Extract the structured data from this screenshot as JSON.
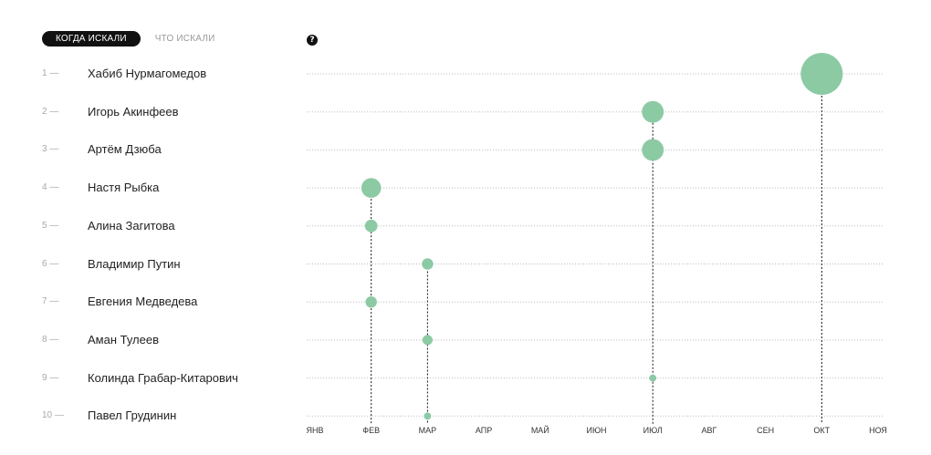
{
  "tabs": {
    "when": "Когда искали",
    "what": "Что искали"
  },
  "help": {
    "icon": "question-icon",
    "glyph": "?"
  },
  "chart_data": {
    "type": "scatter",
    "x_axis": [
      "ЯНВ",
      "ФЕВ",
      "МАР",
      "АПР",
      "МАЙ",
      "ИЮН",
      "ИЮЛ",
      "АВГ",
      "СЕН",
      "ОКТ",
      "НОЯ"
    ],
    "grid": true,
    "point_color": "#8ccaa4",
    "rows": [
      {
        "rank": "1 —",
        "name": "Хабиб Нурмагомедов",
        "month": "ОКТ",
        "size": 1.0
      },
      {
        "rank": "2 —",
        "name": "Игорь Акинфеев",
        "month": "ИЮЛ",
        "size": 0.52
      },
      {
        "rank": "3 —",
        "name": "Артём Дзюба",
        "month": "ИЮЛ",
        "size": 0.52
      },
      {
        "rank": "4 —",
        "name": "Настя Рыбка",
        "month": "ФЕВ",
        "size": 0.47
      },
      {
        "rank": "5 —",
        "name": "Алина Загитова",
        "month": "ФЕВ",
        "size": 0.3
      },
      {
        "rank": "6 —",
        "name": "Владимир Путин",
        "month": "МАР",
        "size": 0.27
      },
      {
        "rank": "7 —",
        "name": "Евгения Медведева",
        "month": "ФЕВ",
        "size": 0.27
      },
      {
        "rank": "8 —",
        "name": "Аман Тулеев",
        "month": "МАР",
        "size": 0.24
      },
      {
        "rank": "9 —",
        "name": "Колинда Грабар-Китарович",
        "month": "ИЮЛ",
        "size": 0.17
      },
      {
        "rank": "10 —",
        "name": "Павел Грудинин",
        "month": "МАР",
        "size": 0.17
      }
    ]
  }
}
